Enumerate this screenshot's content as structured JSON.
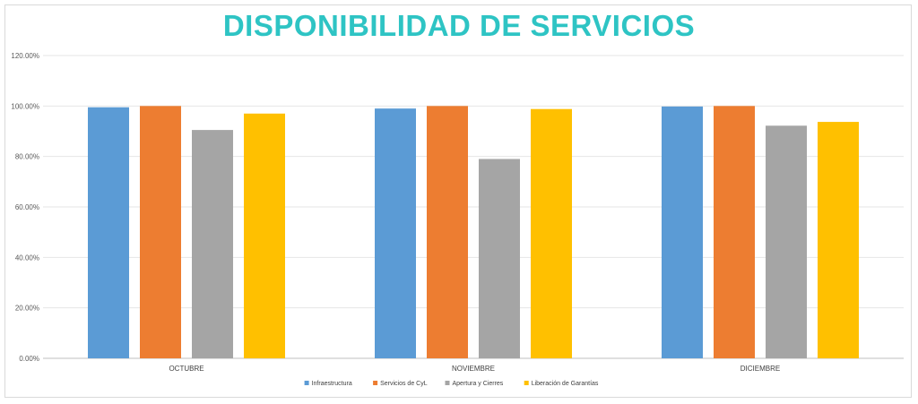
{
  "chart_data": {
    "type": "bar",
    "title": "DISPONIBILIDAD DE SERVICIOS",
    "categories": [
      "OCTUBRE",
      "NOVIEMBRE",
      "DICIEMBRE"
    ],
    "series": [
      {
        "name": "Infraestructura",
        "color": "#5b9bd5",
        "values": [
          99.5,
          99.0,
          99.8
        ]
      },
      {
        "name": "Servicios de CyL",
        "color": "#ed7d31",
        "values": [
          100.0,
          100.0,
          100.0
        ]
      },
      {
        "name": "Apertura y Cierres",
        "color": "#a5a5a5",
        "values": [
          90.5,
          79.0,
          92.2
        ]
      },
      {
        "name": "Liberación de Garantías",
        "color": "#ffc000",
        "values": [
          97.0,
          98.8,
          93.7
        ]
      }
    ],
    "y_ticks": [
      "0.00%",
      "20.00%",
      "40.00%",
      "60.00%",
      "80.00%",
      "100.00%",
      "120.00%"
    ],
    "ylim": [
      0,
      120
    ],
    "xlabel": "",
    "ylabel": "",
    "grid": true,
    "legend_position": "bottom"
  }
}
